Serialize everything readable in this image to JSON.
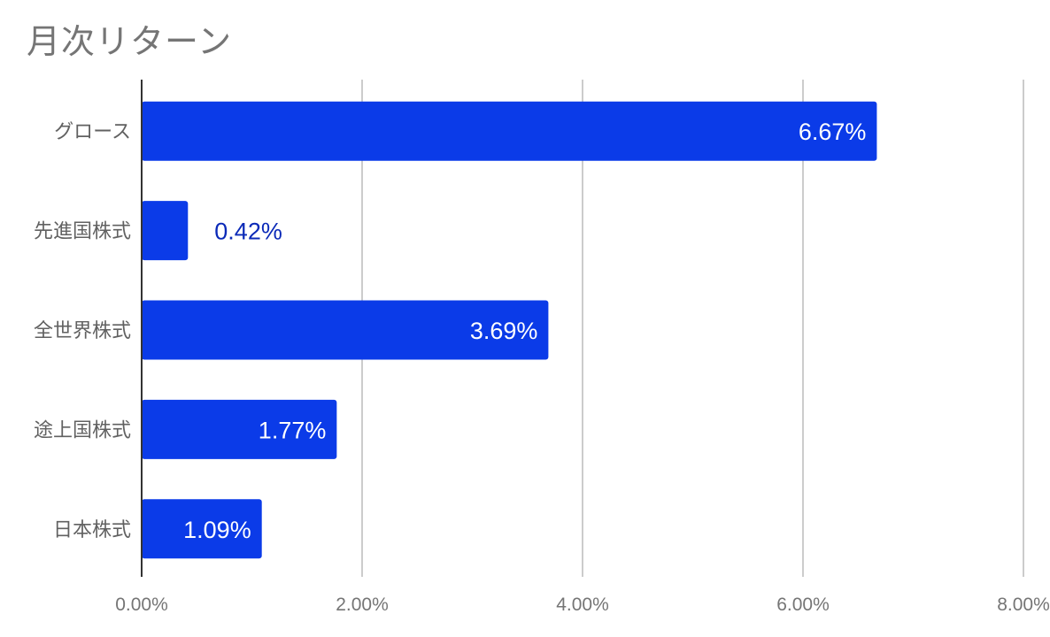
{
  "chart_data": {
    "type": "bar",
    "orientation": "horizontal",
    "title": "月次リターン",
    "categories": [
      "グロース",
      "先進国株式",
      "全世界株式",
      "途上国株式",
      "日本株式"
    ],
    "values": [
      6.67,
      0.42,
      3.69,
      1.77,
      1.09
    ],
    "value_labels": [
      "6.67%",
      "0.42%",
      "3.69%",
      "1.77%",
      "1.09%"
    ],
    "xlim": [
      0,
      8
    ],
    "xticks": [
      "0.00%",
      "2.00%",
      "4.00%",
      "6.00%",
      "8.00%"
    ],
    "grid": true,
    "legend": "none",
    "colors": {
      "bar": "#0b3be8",
      "label_inside": "#ffffff",
      "label_outside": "#0b2ab8",
      "grid": "#cccccc",
      "axis": "#333333"
    }
  }
}
